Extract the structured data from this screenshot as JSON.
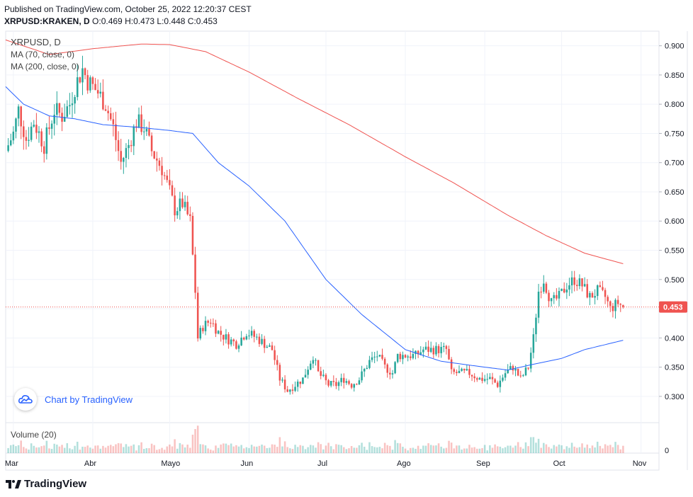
{
  "header": {
    "published": "Published on TradingView.com, October 25, 2022 12:20:37 CEST",
    "symbol": "XRPUSD:KRAKEN, D",
    "ohlc": "O:0.469 H:0.473 L:0.448 C:0.453"
  },
  "legend": {
    "symbol": "XRPUSD, D",
    "ma70": "MA (70, close, 0)",
    "ma200": "MA (200, close, 0)",
    "volume": "Volume (20)"
  },
  "badge": {
    "text": "Chart by TradingView",
    "icon": "tradingview-cloud-icon"
  },
  "footer": {
    "text": "TradingView",
    "icon": "tradingview-logo-icon"
  },
  "colors": {
    "up": "#26a69a",
    "down": "#ef5350",
    "ma70": "#2962ff",
    "ma200": "#ef5350",
    "last_price": "#ef5350"
  },
  "chart_data": {
    "type": "candlestick",
    "x_range": [
      "2022-02-26",
      "2022-11-08"
    ],
    "y_range": [
      0.255,
      0.925
    ],
    "y_ticks": [
      "0.900",
      "0.850",
      "0.800",
      "0.750",
      "0.700",
      "0.650",
      "0.600",
      "0.550",
      "0.500",
      "0.450",
      "0.400",
      "0.350",
      "0.300"
    ],
    "x_ticks": [
      {
        "label": "Mar",
        "date": "2022-03-01"
      },
      {
        "label": "Abr",
        "date": "2022-04-01"
      },
      {
        "label": "Mayo",
        "date": "2022-05-01"
      },
      {
        "label": "Jun",
        "date": "2022-06-01"
      },
      {
        "label": "Jul",
        "date": "2022-07-01"
      },
      {
        "label": "Ago",
        "date": "2022-08-01"
      },
      {
        "label": "Sep",
        "date": "2022-09-01"
      },
      {
        "label": "Oct",
        "date": "2022-10-01"
      },
      {
        "label": "Nov",
        "date": "2022-11-01"
      }
    ],
    "last_price": "0.453",
    "volume_tick": "0",
    "grid": true,
    "price_anchors": [
      [
        "2022-02-26",
        0.72
      ],
      [
        "2022-03-01",
        0.75
      ],
      [
        "2022-03-03",
        0.79
      ],
      [
        "2022-03-06",
        0.74
      ],
      [
        "2022-03-09",
        0.77
      ],
      [
        "2022-03-13",
        0.73
      ],
      [
        "2022-03-17",
        0.79
      ],
      [
        "2022-03-20",
        0.78
      ],
      [
        "2022-03-23",
        0.8
      ],
      [
        "2022-03-25",
        0.83
      ],
      [
        "2022-03-28",
        0.86
      ],
      [
        "2022-03-30",
        0.84
      ],
      [
        "2022-04-03",
        0.82
      ],
      [
        "2022-04-06",
        0.8
      ],
      [
        "2022-04-09",
        0.76
      ],
      [
        "2022-04-12",
        0.7
      ],
      [
        "2022-04-15",
        0.73
      ],
      [
        "2022-04-18",
        0.77
      ],
      [
        "2022-04-21",
        0.76
      ],
      [
        "2022-04-24",
        0.72
      ],
      [
        "2022-04-28",
        0.69
      ],
      [
        "2022-05-01",
        0.65
      ],
      [
        "2022-05-03",
        0.62
      ],
      [
        "2022-05-06",
        0.63
      ],
      [
        "2022-05-09",
        0.6
      ],
      [
        "2022-05-11",
        0.48
      ],
      [
        "2022-05-12",
        0.4
      ],
      [
        "2022-05-14",
        0.42
      ],
      [
        "2022-05-17",
        0.43
      ],
      [
        "2022-05-20",
        0.41
      ],
      [
        "2022-05-23",
        0.4
      ],
      [
        "2022-05-27",
        0.39
      ],
      [
        "2022-05-31",
        0.41
      ],
      [
        "2022-06-04",
        0.4
      ],
      [
        "2022-06-07",
        0.39
      ],
      [
        "2022-06-10",
        0.38
      ],
      [
        "2022-06-13",
        0.33
      ],
      [
        "2022-06-16",
        0.31
      ],
      [
        "2022-06-19",
        0.32
      ],
      [
        "2022-06-22",
        0.33
      ],
      [
        "2022-06-26",
        0.37
      ],
      [
        "2022-06-28",
        0.34
      ],
      [
        "2022-07-02",
        0.32
      ],
      [
        "2022-07-05",
        0.32
      ],
      [
        "2022-07-08",
        0.33
      ],
      [
        "2022-07-11",
        0.32
      ],
      [
        "2022-07-14",
        0.33
      ],
      [
        "2022-07-18",
        0.36
      ],
      [
        "2022-07-21",
        0.37
      ],
      [
        "2022-07-24",
        0.35
      ],
      [
        "2022-07-27",
        0.34
      ],
      [
        "2022-07-29",
        0.37
      ],
      [
        "2022-08-02",
        0.37
      ],
      [
        "2022-08-05",
        0.37
      ],
      [
        "2022-08-08",
        0.38
      ],
      [
        "2022-08-13",
        0.38
      ],
      [
        "2022-08-17",
        0.38
      ],
      [
        "2022-08-19",
        0.34
      ],
      [
        "2022-08-23",
        0.34
      ],
      [
        "2022-08-26",
        0.34
      ],
      [
        "2022-08-30",
        0.33
      ],
      [
        "2022-09-03",
        0.33
      ],
      [
        "2022-09-06",
        0.32
      ],
      [
        "2022-09-09",
        0.34
      ],
      [
        "2022-09-12",
        0.35
      ],
      [
        "2022-09-15",
        0.33
      ],
      [
        "2022-09-18",
        0.35
      ],
      [
        "2022-09-20",
        0.4
      ],
      [
        "2022-09-22",
        0.48
      ],
      [
        "2022-09-24",
        0.5
      ],
      [
        "2022-09-27",
        0.46
      ],
      [
        "2022-09-30",
        0.47
      ],
      [
        "2022-10-03",
        0.49
      ],
      [
        "2022-10-06",
        0.5
      ],
      [
        "2022-10-09",
        0.49
      ],
      [
        "2022-10-12",
        0.47
      ],
      [
        "2022-10-15",
        0.48
      ],
      [
        "2022-10-18",
        0.47
      ],
      [
        "2022-10-20",
        0.45
      ],
      [
        "2022-10-23",
        0.46
      ],
      [
        "2022-10-25",
        0.453
      ]
    ],
    "ma70_anchors": [
      [
        "2022-02-26",
        0.83
      ],
      [
        "2022-03-05",
        0.8
      ],
      [
        "2022-03-15",
        0.78
      ],
      [
        "2022-03-25",
        0.775
      ],
      [
        "2022-04-05",
        0.765
      ],
      [
        "2022-04-20",
        0.76
      ],
      [
        "2022-05-01",
        0.755
      ],
      [
        "2022-05-10",
        0.75
      ],
      [
        "2022-05-20",
        0.7
      ],
      [
        "2022-06-01",
        0.66
      ],
      [
        "2022-06-15",
        0.6
      ],
      [
        "2022-07-01",
        0.5
      ],
      [
        "2022-07-15",
        0.44
      ],
      [
        "2022-08-01",
        0.38
      ],
      [
        "2022-08-15",
        0.36
      ],
      [
        "2022-09-01",
        0.35
      ],
      [
        "2022-09-10",
        0.345
      ],
      [
        "2022-09-20",
        0.355
      ],
      [
        "2022-10-01",
        0.365
      ],
      [
        "2022-10-10",
        0.38
      ],
      [
        "2022-10-25",
        0.396
      ]
    ],
    "ma200_anchors": [
      [
        "2022-02-26",
        0.91
      ],
      [
        "2022-03-15",
        0.885
      ],
      [
        "2022-04-01",
        0.895
      ],
      [
        "2022-04-20",
        0.903
      ],
      [
        "2022-05-01",
        0.902
      ],
      [
        "2022-05-15",
        0.89
      ],
      [
        "2022-06-01",
        0.855
      ],
      [
        "2022-06-20",
        0.81
      ],
      [
        "2022-07-10",
        0.765
      ],
      [
        "2022-08-01",
        0.71
      ],
      [
        "2022-08-20",
        0.665
      ],
      [
        "2022-09-10",
        0.61
      ],
      [
        "2022-09-25",
        0.575
      ],
      [
        "2022-10-10",
        0.545
      ],
      [
        "2022-10-25",
        0.527
      ]
    ]
  }
}
